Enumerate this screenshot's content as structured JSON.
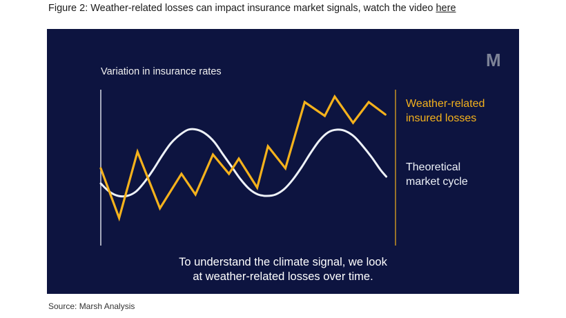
{
  "caption": {
    "text": "Figure 2: Weather-related losses can impact insurance market signals, watch the video ",
    "link": "here"
  },
  "logo": "M",
  "source": "Source: Marsh Analysis",
  "colors": {
    "background": "#0d1440",
    "losses": "#f5b21c",
    "cycle": "#eef2f8",
    "axis": "#d8dce6"
  },
  "chart_data": {
    "type": "line",
    "ylabel": "Variation in insurance rates",
    "xlabel": "",
    "ylim": [
      0,
      100
    ],
    "xlim": [
      0,
      100
    ],
    "grid": false,
    "legend": "right",
    "series": [
      {
        "name": "Weather-related\ninsured losses",
        "color": "#f5b21c",
        "x": [
          0,
          6.3,
          12.6,
          20.3,
          27.7,
          32.5,
          38.5,
          44,
          47.4,
          53.7,
          57.4,
          63.4,
          70,
          76.9,
          80.3,
          86.6,
          92,
          97.7
        ],
        "y": [
          45,
          9,
          57,
          16,
          41,
          26,
          55,
          41,
          52,
          31,
          61,
          45,
          93,
          83,
          97,
          78,
          93,
          84
        ]
      },
      {
        "name": "Theoretical\nmarket cycle",
        "color": "#eef2f8",
        "x": [
          0,
          3,
          6,
          9,
          12,
          15,
          18,
          21,
          24,
          27,
          30,
          33,
          36,
          39,
          42,
          45,
          48,
          51,
          54,
          57,
          60,
          63,
          66,
          69,
          72,
          75,
          78,
          81,
          84,
          87,
          90,
          93,
          96,
          98
        ],
        "y": [
          34,
          28,
          25,
          25,
          28,
          35,
          44,
          54,
          63,
          69,
          73,
          73,
          70,
          64,
          55,
          46,
          37,
          30,
          26,
          25,
          26,
          30,
          37,
          46,
          56,
          65,
          71,
          73,
          72,
          68,
          61,
          53,
          44,
          39
        ]
      }
    ],
    "annotation": "To understand the climate signal, we look\nat weather-related losses over time."
  }
}
